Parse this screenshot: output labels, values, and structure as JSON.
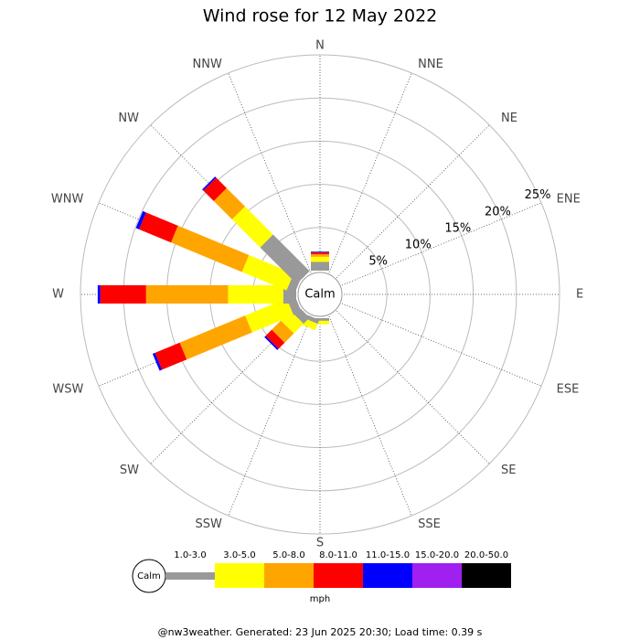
{
  "chart_data": {
    "type": "wind_rose",
    "title": "Wind rose for 12 May 2022",
    "categories": [
      "N",
      "NNE",
      "NE",
      "ENE",
      "E",
      "ESE",
      "SE",
      "SSE",
      "S",
      "SSW",
      "SW",
      "WSW",
      "W",
      "WNW",
      "NW",
      "NNW"
    ],
    "center_label": "Calm",
    "rlim": [
      0,
      25
    ],
    "rticks": [
      {
        "value": 5,
        "label": "5%"
      },
      {
        "value": 10,
        "label": "10%"
      },
      {
        "value": 15,
        "label": "15%"
      },
      {
        "value": 20,
        "label": "20%"
      },
      {
        "value": 25,
        "label": "25%"
      }
    ],
    "series": [
      {
        "name": "1.0-3.0",
        "color": "#999999",
        "values": [
          1.0,
          0,
          0,
          0,
          0,
          0,
          0,
          0,
          0.3,
          0.5,
          1.0,
          1.0,
          1.5,
          1.0,
          6.0,
          0
        ]
      },
      {
        "name": "3.0-5.0",
        "color": "#ffff00",
        "values": [
          0.6,
          0,
          0,
          0,
          0,
          0,
          0,
          0,
          0.4,
          0.8,
          1.6,
          5.2,
          6.4,
          5.6,
          4.6,
          0
        ]
      },
      {
        "name": "5.0-8.0",
        "color": "#ffa500",
        "values": [
          0.3,
          0,
          0,
          0,
          0,
          0,
          0,
          0,
          0,
          0,
          1.5,
          8.2,
          9.5,
          8.9,
          3.0,
          0
        ]
      },
      {
        "name": "8.0-11.0",
        "color": "#ff0000",
        "values": [
          0.2,
          0,
          0,
          0,
          0,
          0,
          0,
          0,
          0,
          0,
          1.0,
          3.1,
          5.3,
          4.0,
          1.7,
          0
        ]
      },
      {
        "name": "11.0-15.0",
        "color": "#0000ff",
        "values": [
          0.1,
          0,
          0,
          0,
          0,
          0,
          0,
          0,
          0,
          0,
          0.2,
          0.3,
          0.3,
          0.4,
          0.2,
          0
        ]
      },
      {
        "name": "15.0-20.0",
        "color": "#a020f0",
        "values": [
          0,
          0,
          0,
          0,
          0,
          0,
          0,
          0,
          0,
          0,
          0,
          0,
          0,
          0,
          0,
          0
        ]
      },
      {
        "name": "20.0-50.0",
        "color": "#000000",
        "values": [
          0,
          0,
          0,
          0,
          0,
          0,
          0,
          0,
          0,
          0,
          0,
          0,
          0,
          0,
          0,
          0
        ]
      }
    ],
    "legend_unit": "mph",
    "footer": "@nw3weather. Generated: 23 Jun 2025 20:30; Load time: 0.39 s"
  }
}
